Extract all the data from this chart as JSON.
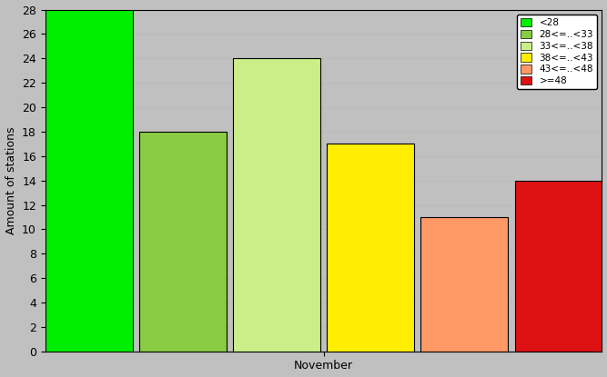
{
  "bars": [
    {
      "label": "<28",
      "value": 28,
      "color": "#00ee00"
    },
    {
      "label": "28<=..<33",
      "value": 18,
      "color": "#88cc44"
    },
    {
      "label": "33<=..<38",
      "value": 24,
      "color": "#ccee88"
    },
    {
      "label": "38<=..<43",
      "value": 17,
      "color": "#ffee00"
    },
    {
      "label": "43<=..<48",
      "value": 11,
      "color": "#ff9966"
    },
    {
      "label": ">=48",
      "value": 14,
      "color": "#dd1111"
    }
  ],
  "ylabel": "Amount of stations",
  "xlabel": "November",
  "ylim": [
    0,
    28
  ],
  "yticks": [
    0,
    2,
    4,
    6,
    8,
    10,
    12,
    14,
    16,
    18,
    20,
    22,
    24,
    26,
    28
  ],
  "background_color": "#c0c0c0",
  "plot_bg_color": "#c0c0c0",
  "grid_color": "#aaaaaa",
  "legend_fontsize": 7.5,
  "axis_fontsize": 9
}
